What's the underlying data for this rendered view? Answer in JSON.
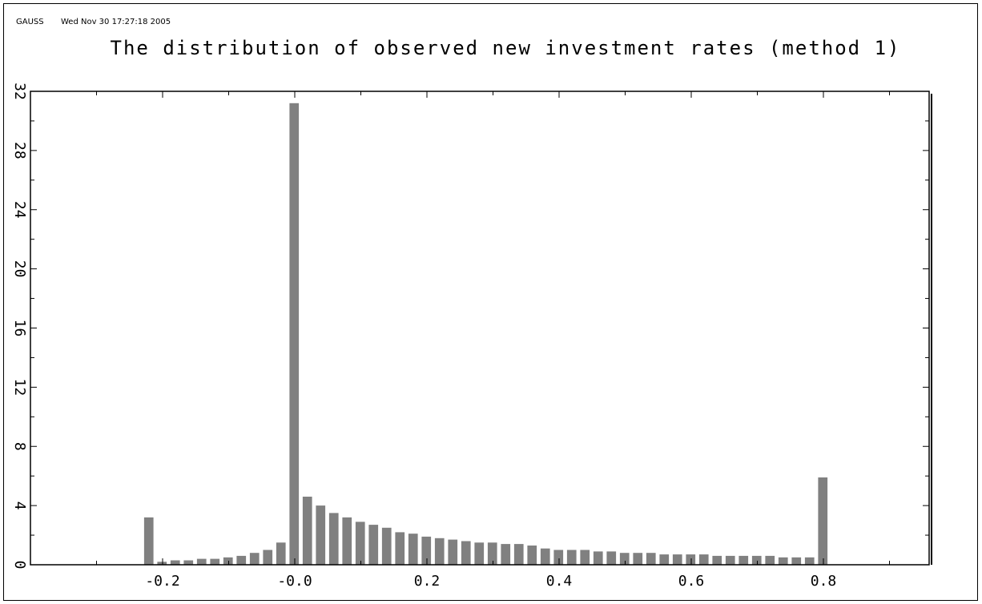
{
  "header": {
    "program": "GAUSS",
    "timestamp": "Wed Nov 30 17:27:18 2005"
  },
  "chart_data": {
    "type": "bar",
    "title": "The distribution of observed new investment rates (method 1)",
    "xlabel": "",
    "ylabel": "",
    "xlim": [
      -0.4,
      0.96
    ],
    "ylim": [
      0,
      32
    ],
    "bar_width": 0.016,
    "x_ticks": [
      -0.2,
      0.0,
      0.2,
      0.4,
      0.6,
      0.8
    ],
    "x_tick_labels": [
      "-0.2",
      "-0.0",
      "0.2",
      "0.4",
      "0.6",
      "0.8"
    ],
    "y_ticks": [
      0,
      4,
      8,
      12,
      16,
      20,
      24,
      28,
      32
    ],
    "y_tick_labels": [
      "0",
      "4",
      "8",
      "12",
      "16",
      "20",
      "24",
      "28",
      "32"
    ],
    "y_minor_step": 2,
    "x_minor_step": 0.1,
    "bar_color": "#808080",
    "x": [
      -0.22,
      -0.2,
      -0.18,
      -0.16,
      -0.14,
      -0.12,
      -0.1,
      -0.08,
      -0.06,
      -0.04,
      -0.02,
      0.0,
      0.02,
      0.04,
      0.06,
      0.08,
      0.1,
      0.12,
      0.14,
      0.16,
      0.18,
      0.2,
      0.22,
      0.24,
      0.26,
      0.28,
      0.3,
      0.32,
      0.34,
      0.36,
      0.38,
      0.4,
      0.42,
      0.44,
      0.46,
      0.48,
      0.5,
      0.52,
      0.54,
      0.56,
      0.58,
      0.6,
      0.62,
      0.64,
      0.66,
      0.68,
      0.7,
      0.72,
      0.74,
      0.76,
      0.78,
      0.8
    ],
    "values": [
      3.2,
      0.2,
      0.3,
      0.3,
      0.4,
      0.4,
      0.5,
      0.6,
      0.8,
      1.0,
      1.5,
      31.2,
      4.6,
      4.0,
      3.5,
      3.2,
      2.9,
      2.7,
      2.5,
      2.2,
      2.1,
      1.9,
      1.8,
      1.7,
      1.6,
      1.5,
      1.5,
      1.4,
      1.4,
      1.3,
      1.1,
      1.0,
      1.0,
      1.0,
      0.9,
      0.9,
      0.8,
      0.8,
      0.8,
      0.7,
      0.7,
      0.7,
      0.7,
      0.6,
      0.6,
      0.6,
      0.6,
      0.6,
      0.5,
      0.5,
      0.5,
      5.9
    ]
  }
}
